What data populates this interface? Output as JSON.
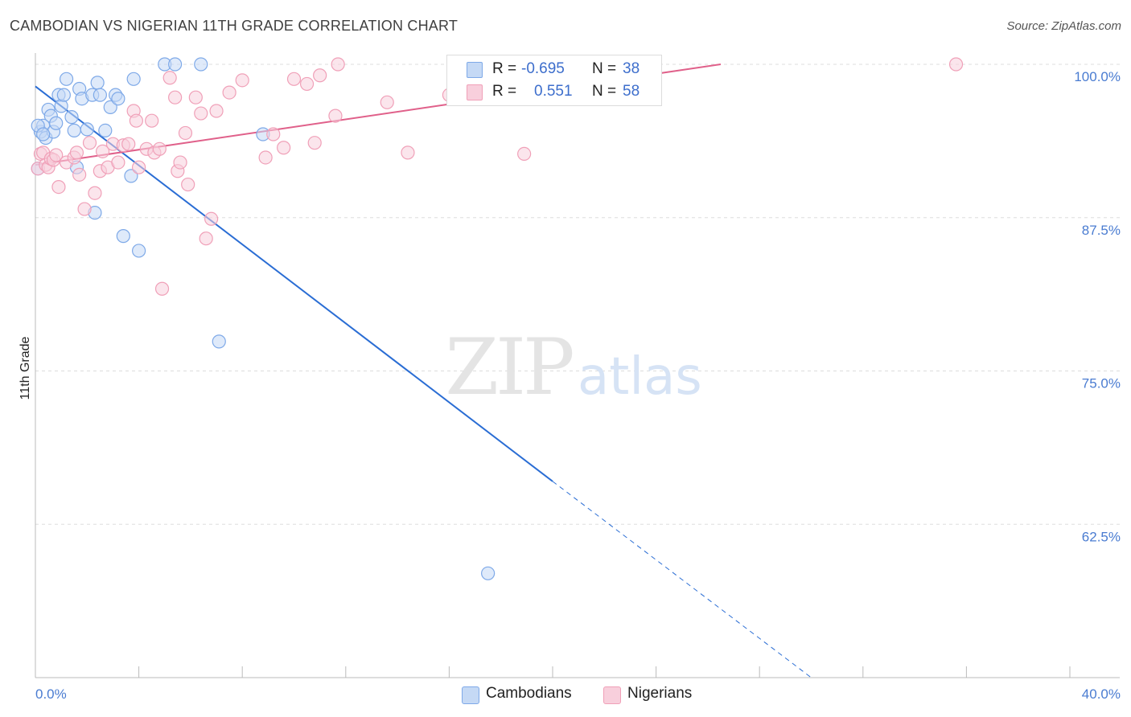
{
  "chart_data": {
    "type": "scatter",
    "title": "CAMBODIAN VS NIGERIAN 11TH GRADE CORRELATION CHART",
    "source": "Source: ZipAtlas.com",
    "watermark": {
      "zip": "ZIP",
      "atlas": "atlas"
    },
    "ylabel": "11th Grade",
    "xlim": [
      0,
      40
    ],
    "ylim": [
      50,
      100
    ],
    "x_tick_labels": {
      "left": "0.0%",
      "right": "40.0%"
    },
    "y_ticks": [
      {
        "value": 100,
        "label": "100.0%"
      },
      {
        "value": 87.5,
        "label": "87.5%"
      },
      {
        "value": 75,
        "label": "75.0%"
      },
      {
        "value": 62.5,
        "label": "62.5%"
      }
    ],
    "legend": [
      {
        "name": "Cambodians",
        "r_label": "R =",
        "r": "-0.695",
        "n_label": "N =",
        "n": "38"
      },
      {
        "name": "Nigerians",
        "r_label": "R =",
        "r": "0.551",
        "n_label": "N =",
        "n": "58"
      }
    ],
    "series": [
      {
        "name": "Cambodians",
        "color": "#7ea9e8",
        "fill": "#c5d9f5",
        "line_color": "#2a6dd4",
        "trend": {
          "x0": 0,
          "y0": 98.2,
          "x1": 20,
          "y1": 66.0,
          "dash_x_end": 30,
          "dash_y_end": 50
        },
        "points": [
          [
            0.1,
            91.5
          ],
          [
            0.2,
            94.5
          ],
          [
            0.3,
            95.0
          ],
          [
            0.4,
            94.0
          ],
          [
            0.5,
            96.3
          ],
          [
            0.6,
            95.8
          ],
          [
            0.7,
            94.5
          ],
          [
            0.8,
            95.2
          ],
          [
            0.9,
            97.5
          ],
          [
            1.0,
            96.6
          ],
          [
            1.1,
            97.5
          ],
          [
            1.2,
            98.8
          ],
          [
            1.4,
            95.7
          ],
          [
            1.5,
            94.6
          ],
          [
            1.6,
            91.6
          ],
          [
            1.7,
            98.0
          ],
          [
            1.8,
            97.2
          ],
          [
            2.0,
            94.7
          ],
          [
            2.2,
            97.5
          ],
          [
            2.3,
            87.9
          ],
          [
            2.4,
            98.5
          ],
          [
            2.5,
            97.5
          ],
          [
            2.7,
            94.6
          ],
          [
            2.9,
            96.5
          ],
          [
            3.1,
            97.5
          ],
          [
            3.2,
            97.2
          ],
          [
            3.4,
            86.0
          ],
          [
            3.7,
            90.9
          ],
          [
            3.8,
            98.8
          ],
          [
            4.0,
            84.8
          ],
          [
            5.0,
            100.0
          ],
          [
            5.4,
            100.0
          ],
          [
            6.4,
            100.0
          ],
          [
            7.1,
            77.4
          ],
          [
            8.8,
            94.3
          ],
          [
            17.5,
            58.5
          ],
          [
            0.1,
            95.0
          ],
          [
            0.3,
            94.3
          ]
        ]
      },
      {
        "name": "Nigerians",
        "color": "#f0a0b8",
        "fill": "#f8cfdc",
        "line_color": "#e0608a",
        "trend": {
          "x0": 0,
          "y0": 91.8,
          "x1": 26.5,
          "y1": 100.0
        },
        "points": [
          [
            0.1,
            91.5
          ],
          [
            0.2,
            92.7
          ],
          [
            0.3,
            92.8
          ],
          [
            0.4,
            91.8
          ],
          [
            0.5,
            91.6
          ],
          [
            0.6,
            92.3
          ],
          [
            0.7,
            92.2
          ],
          [
            0.8,
            92.6
          ],
          [
            0.9,
            90.0
          ],
          [
            1.2,
            92.0
          ],
          [
            1.5,
            92.4
          ],
          [
            1.6,
            92.8
          ],
          [
            1.7,
            91.0
          ],
          [
            1.9,
            88.2
          ],
          [
            2.1,
            93.6
          ],
          [
            2.3,
            89.5
          ],
          [
            2.5,
            91.3
          ],
          [
            2.6,
            92.9
          ],
          [
            2.8,
            91.6
          ],
          [
            3.0,
            93.5
          ],
          [
            3.2,
            92.0
          ],
          [
            3.4,
            93.4
          ],
          [
            3.6,
            93.5
          ],
          [
            3.8,
            96.2
          ],
          [
            3.9,
            95.4
          ],
          [
            4.0,
            91.6
          ],
          [
            4.3,
            93.1
          ],
          [
            4.5,
            95.4
          ],
          [
            4.6,
            92.8
          ],
          [
            4.8,
            93.1
          ],
          [
            4.9,
            81.7
          ],
          [
            5.2,
            98.9
          ],
          [
            5.4,
            97.3
          ],
          [
            5.5,
            91.3
          ],
          [
            5.6,
            92.0
          ],
          [
            5.8,
            94.4
          ],
          [
            5.9,
            90.2
          ],
          [
            6.2,
            97.3
          ],
          [
            6.4,
            96.0
          ],
          [
            6.6,
            85.8
          ],
          [
            6.8,
            87.4
          ],
          [
            7.0,
            96.2
          ],
          [
            7.5,
            97.7
          ],
          [
            8.0,
            98.7
          ],
          [
            8.9,
            92.4
          ],
          [
            9.2,
            94.3
          ],
          [
            9.6,
            93.2
          ],
          [
            10.0,
            98.8
          ],
          [
            10.5,
            98.4
          ],
          [
            10.8,
            93.6
          ],
          [
            11.0,
            99.1
          ],
          [
            11.6,
            95.8
          ],
          [
            11.7,
            100.0
          ],
          [
            13.6,
            96.9
          ],
          [
            14.4,
            92.8
          ],
          [
            16.0,
            97.5
          ],
          [
            18.9,
            92.7
          ],
          [
            35.6,
            100.0
          ]
        ]
      }
    ]
  }
}
